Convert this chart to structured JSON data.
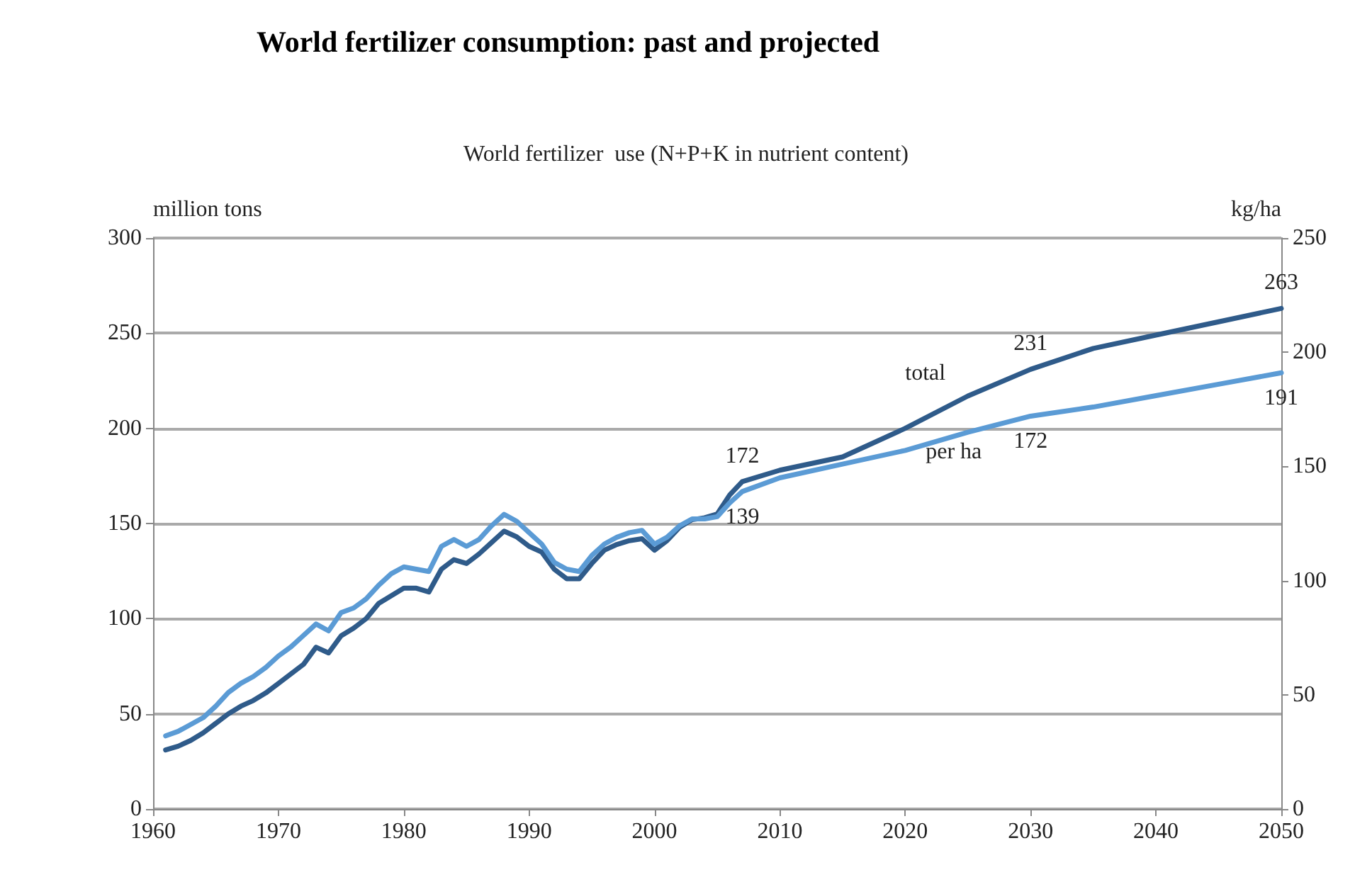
{
  "chart_data": {
    "type": "line",
    "title": "World fertilizer consumption: past and projected",
    "subtitle": "World fertilizer  use (N+P+K in nutrient content)",
    "ylabel": "million tons",
    "y2label": "kg/ha",
    "x": [
      1961,
      1962,
      1963,
      1964,
      1965,
      1966,
      1967,
      1968,
      1969,
      1970,
      1971,
      1972,
      1973,
      1974,
      1975,
      1976,
      1977,
      1978,
      1979,
      1980,
      1981,
      1982,
      1983,
      1984,
      1985,
      1986,
      1987,
      1988,
      1989,
      1990,
      1991,
      1992,
      1993,
      1994,
      1995,
      1996,
      1997,
      1998,
      1999,
      2000,
      2001,
      2002,
      2003,
      2004,
      2005,
      2006,
      2007,
      2010,
      2015,
      2020,
      2025,
      2030,
      2035,
      2040,
      2045,
      2050
    ],
    "series": [
      {
        "name": "total",
        "color": "#2f5b8a",
        "values": [
          31,
          33,
          36,
          40,
          45,
          50,
          54,
          57,
          61,
          66,
          71,
          76,
          85,
          82,
          91,
          95,
          100,
          108,
          112,
          116,
          116,
          114,
          126,
          131,
          129,
          134,
          140,
          146,
          143,
          138,
          135,
          126,
          121,
          121,
          129,
          136,
          139,
          141,
          142,
          136,
          141,
          148,
          152,
          153,
          155,
          165,
          172,
          178,
          185,
          200,
          217,
          231,
          242,
          249,
          256,
          263
        ],
        "value_labels": [
          null,
          null,
          null,
          null,
          null,
          null,
          null,
          null,
          null,
          null,
          null,
          null,
          null,
          null,
          null,
          null,
          null,
          null,
          null,
          null,
          null,
          null,
          null,
          null,
          null,
          null,
          null,
          null,
          null,
          null,
          null,
          null,
          null,
          null,
          null,
          null,
          null,
          null,
          null,
          null,
          null,
          null,
          null,
          null,
          null,
          null,
          "172",
          null,
          null,
          null,
          null,
          "231",
          null,
          null,
          null,
          "263"
        ]
      },
      {
        "name": "per ha",
        "color": "#5b9bd5",
        "axis": "y2",
        "values": [
          32,
          34,
          37,
          40,
          45,
          51,
          55,
          58,
          62,
          67,
          71,
          76,
          81,
          78,
          86,
          88,
          92,
          98,
          103,
          106,
          105,
          104,
          115,
          118,
          115,
          118,
          124,
          129,
          126,
          121,
          116,
          108,
          105,
          104,
          111,
          116,
          119,
          121,
          122,
          116,
          119,
          124,
          127,
          127,
          128,
          134,
          139,
          145,
          151,
          157,
          165,
          172,
          176,
          181,
          186,
          191
        ],
        "value_labels": [
          null,
          null,
          null,
          null,
          null,
          null,
          null,
          null,
          null,
          null,
          null,
          null,
          null,
          null,
          null,
          null,
          null,
          null,
          null,
          null,
          null,
          null,
          null,
          null,
          null,
          null,
          null,
          null,
          null,
          null,
          null,
          null,
          null,
          null,
          null,
          null,
          null,
          null,
          null,
          null,
          null,
          null,
          null,
          null,
          null,
          null,
          "139",
          null,
          null,
          null,
          null,
          "172",
          null,
          null,
          null,
          "191"
        ]
      }
    ],
    "xlim": [
      1960,
      2050
    ],
    "xticks": [
      1960,
      1970,
      1980,
      1990,
      2000,
      2010,
      2020,
      2030,
      2040,
      2050
    ],
    "ylim": [
      0,
      300
    ],
    "yticks": [
      0,
      50,
      100,
      150,
      200,
      250,
      300
    ],
    "y2lim": [
      0,
      250
    ],
    "y2ticks": [
      0,
      50,
      100,
      150,
      200,
      250
    ],
    "grid": "y",
    "legend": false,
    "marker": "none",
    "line_style": "solid"
  }
}
